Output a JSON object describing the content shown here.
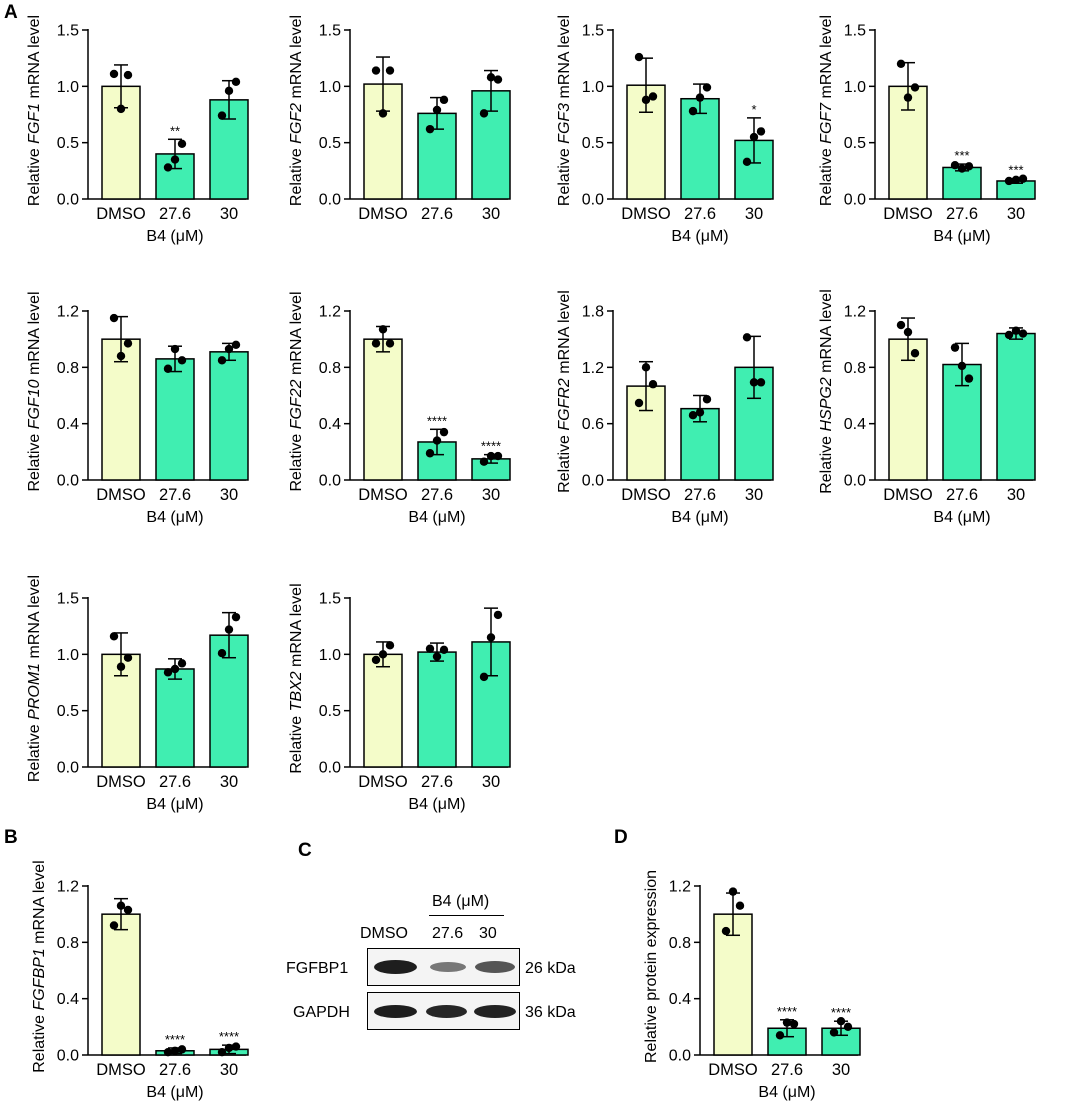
{
  "panels": {
    "a": "A",
    "b": "B",
    "c": "C",
    "d": "D"
  },
  "colors": {
    "dmso": "#f4fcc9",
    "treated": "#40eeb1",
    "stroke": "#000000"
  },
  "chart_data": [
    {
      "type": "bar",
      "gene": "FGF1",
      "ylabel_pre": "Relative ",
      "ylabel_post": " mRNA level",
      "xlabel": "B4 (μM)",
      "categories": [
        "DMSO",
        "27.6",
        "30"
      ],
      "values": [
        1.0,
        0.4,
        0.88
      ],
      "errors": [
        0.19,
        0.13,
        0.17
      ],
      "points": [
        [
          1.11,
          0.8,
          1.1
        ],
        [
          0.28,
          0.35,
          0.49
        ],
        [
          0.74,
          0.96,
          1.04
        ]
      ],
      "significance": [
        "",
        "**",
        ""
      ],
      "ylim": [
        0,
        1.5
      ],
      "yticks": [
        "0.0",
        "0.5",
        "1.0",
        "1.5"
      ]
    },
    {
      "type": "bar",
      "gene": "FGF2",
      "ylabel_pre": "Relative ",
      "ylabel_post": " mRNA level",
      "xlabel": "",
      "categories": [
        "DMSO",
        "27.6",
        "30"
      ],
      "values": [
        1.02,
        0.76,
        0.96
      ],
      "errors": [
        0.24,
        0.14,
        0.18
      ],
      "points": [
        [
          1.14,
          0.76,
          1.14
        ],
        [
          0.62,
          0.79,
          0.88
        ],
        [
          0.76,
          1.08,
          1.06
        ]
      ],
      "significance": [
        "",
        "",
        ""
      ],
      "ylim": [
        0,
        1.5
      ],
      "yticks": [
        "0.0",
        "0.5",
        "1.0",
        "1.5"
      ]
    },
    {
      "type": "bar",
      "gene": "FGF3",
      "ylabel_pre": "Relative ",
      "ylabel_post": " mRNA level",
      "xlabel": "B4 (μM)",
      "categories": [
        "DMSO",
        "27.6",
        "30"
      ],
      "values": [
        1.01,
        0.89,
        0.52
      ],
      "errors": [
        0.24,
        0.13,
        0.2
      ],
      "points": [
        [
          1.26,
          0.88,
          0.91
        ],
        [
          0.78,
          0.9,
          0.99
        ],
        [
          0.33,
          0.55,
          0.6
        ]
      ],
      "significance": [
        "",
        "",
        "*"
      ],
      "ylim": [
        0,
        1.5
      ],
      "yticks": [
        "0.0",
        "0.5",
        "1.0",
        "1.5"
      ]
    },
    {
      "type": "bar",
      "gene": "FGF7",
      "ylabel_pre": "Relative ",
      "ylabel_post": " mRNA level",
      "xlabel": "B4 (μM)",
      "categories": [
        "DMSO",
        "27.6",
        "30"
      ],
      "values": [
        1.0,
        0.28,
        0.16
      ],
      "errors": [
        0.21,
        0.03,
        0.02
      ],
      "points": [
        [
          1.2,
          0.9,
          0.99
        ],
        [
          0.3,
          0.27,
          0.29
        ],
        [
          0.16,
          0.17,
          0.18
        ]
      ],
      "significance": [
        "",
        "***",
        "***"
      ],
      "ylim": [
        0,
        1.5
      ],
      "yticks": [
        "0.0",
        "0.5",
        "1.0",
        "1.5"
      ]
    },
    {
      "type": "bar",
      "gene": "FGF10",
      "ylabel_pre": "Relative ",
      "ylabel_post": " mRNA level",
      "xlabel": "B4 (μM)",
      "categories": [
        "DMSO",
        "27.6",
        "30"
      ],
      "values": [
        1.0,
        0.86,
        0.91
      ],
      "errors": [
        0.16,
        0.09,
        0.06
      ],
      "points": [
        [
          1.15,
          0.88,
          0.97
        ],
        [
          0.79,
          0.93,
          0.85
        ],
        [
          0.85,
          0.93,
          0.96
        ]
      ],
      "significance": [
        "",
        "",
        ""
      ],
      "ylim": [
        0,
        1.2
      ],
      "yticks": [
        "0.0",
        "0.4",
        "0.8",
        "1.2"
      ]
    },
    {
      "type": "bar",
      "gene": "FGF22",
      "ylabel_pre": "Relative ",
      "ylabel_post": " mRNA level",
      "xlabel": "B4 (μM)",
      "categories": [
        "DMSO",
        "27.6",
        "30"
      ],
      "values": [
        1.0,
        0.27,
        0.15
      ],
      "errors": [
        0.09,
        0.09,
        0.03
      ],
      "points": [
        [
          0.97,
          1.07,
          0.97
        ],
        [
          0.19,
          0.28,
          0.34
        ],
        [
          0.13,
          0.17,
          0.17
        ]
      ],
      "significance": [
        "",
        "****",
        "****"
      ],
      "ylim": [
        0,
        1.2
      ],
      "yticks": [
        "0.0",
        "0.4",
        "0.8",
        "1.2"
      ]
    },
    {
      "type": "bar",
      "gene": "FGFR2",
      "ylabel_pre": "Relative ",
      "ylabel_post": " mRNA level",
      "xlabel": "B4 (μM)",
      "categories": [
        "DMSO",
        "27.6",
        "30"
      ],
      "values": [
        1.0,
        0.76,
        1.2
      ],
      "errors": [
        0.26,
        0.14,
        0.33
      ],
      "points": [
        [
          0.82,
          1.2,
          1.02
        ],
        [
          0.69,
          0.72,
          0.86
        ],
        [
          1.52,
          1.04,
          1.04
        ]
      ],
      "significance": [
        "",
        "",
        ""
      ],
      "ylim": [
        0,
        1.8
      ],
      "yticks": [
        "0.0",
        "0.6",
        "1.2",
        "1.8"
      ]
    },
    {
      "type": "bar",
      "gene": "HSPG2",
      "ylabel_pre": "Relative ",
      "ylabel_post": " mRNA level",
      "xlabel": "B4 (μM)",
      "categories": [
        "DMSO",
        "27.6",
        "30"
      ],
      "values": [
        1.0,
        0.82,
        1.04
      ],
      "errors": [
        0.15,
        0.15,
        0.04
      ],
      "points": [
        [
          1.1,
          1.05,
          0.9
        ],
        [
          0.94,
          0.81,
          0.72
        ],
        [
          1.03,
          1.06,
          1.04
        ]
      ],
      "significance": [
        "",
        "",
        ""
      ],
      "ylim": [
        0,
        1.2
      ],
      "yticks": [
        "0.0",
        "0.4",
        "0.8",
        "1.2"
      ]
    },
    {
      "type": "bar",
      "gene": "PROM1",
      "ylabel_pre": "Relative ",
      "ylabel_post": " mRNA level",
      "xlabel": "B4 (μM)",
      "categories": [
        "DMSO",
        "27.6",
        "30"
      ],
      "values": [
        1.0,
        0.87,
        1.17
      ],
      "errors": [
        0.19,
        0.09,
        0.2
      ],
      "points": [
        [
          1.16,
          0.89,
          0.97
        ],
        [
          0.84,
          0.87,
          0.92
        ],
        [
          1.01,
          1.22,
          1.33
        ]
      ],
      "significance": [
        "",
        "",
        ""
      ],
      "ylim": [
        0,
        1.5
      ],
      "yticks": [
        "0.0",
        "0.5",
        "1.0",
        "1.5"
      ]
    },
    {
      "type": "bar",
      "gene": "TBX2",
      "ylabel_pre": "Relative ",
      "ylabel_post": " mRNA level",
      "xlabel": "B4 (μM)",
      "categories": [
        "DMSO",
        "27.6",
        "30"
      ],
      "values": [
        1.0,
        1.02,
        1.11
      ],
      "errors": [
        0.11,
        0.08,
        0.3
      ],
      "points": [
        [
          0.95,
          1.0,
          1.08
        ],
        [
          1.05,
          0.98,
          1.04
        ],
        [
          0.8,
          1.15,
          1.35
        ]
      ],
      "significance": [
        "",
        "",
        ""
      ],
      "ylim": [
        0,
        1.5
      ],
      "yticks": [
        "0.0",
        "0.5",
        "1.0",
        "1.5"
      ]
    },
    {
      "type": "bar",
      "gene": "FGFBP1",
      "ylabel_pre": "Relative ",
      "ylabel_post": " mRNA level",
      "xlabel": "B4 (μM)",
      "categories": [
        "DMSO",
        "27.6",
        "30"
      ],
      "values": [
        1.0,
        0.03,
        0.04
      ],
      "errors": [
        0.11,
        0.02,
        0.03
      ],
      "points": [
        [
          0.92,
          1.06,
          1.03
        ],
        [
          0.02,
          0.03,
          0.04
        ],
        [
          0.02,
          0.05,
          0.06
        ]
      ],
      "significance": [
        "",
        "****",
        "****"
      ],
      "ylim": [
        0,
        1.2
      ],
      "yticks": [
        "0.0",
        "0.4",
        "0.8",
        "1.2"
      ]
    },
    {
      "type": "bar",
      "gene": "",
      "ylabel_pre": "Relative protein expression",
      "ylabel_post": "",
      "xlabel": "B4 (μM)",
      "categories": [
        "DMSO",
        "27.6",
        "30"
      ],
      "values": [
        1.0,
        0.19,
        0.19
      ],
      "errors": [
        0.15,
        0.06,
        0.05
      ],
      "points": [
        [
          0.88,
          1.16,
          1.06
        ],
        [
          0.14,
          0.23,
          0.22
        ],
        [
          0.16,
          0.24,
          0.2
        ]
      ],
      "significance": [
        "",
        "****",
        "****"
      ],
      "ylim": [
        0,
        1.2
      ],
      "yticks": [
        "0.0",
        "0.4",
        "0.8",
        "1.2"
      ]
    }
  ],
  "western_blot": {
    "header": "B4 (μM)",
    "lanes": [
      "DMSO",
      "27.6",
      "30"
    ],
    "rows": [
      {
        "protein": "FGFBP1",
        "kda": "26 kDa",
        "intensity": [
          1.0,
          0.45,
          0.6
        ]
      },
      {
        "protein": "GAPDH",
        "kda": "36 kDa",
        "intensity": [
          1.0,
          0.92,
          0.96
        ]
      }
    ]
  }
}
